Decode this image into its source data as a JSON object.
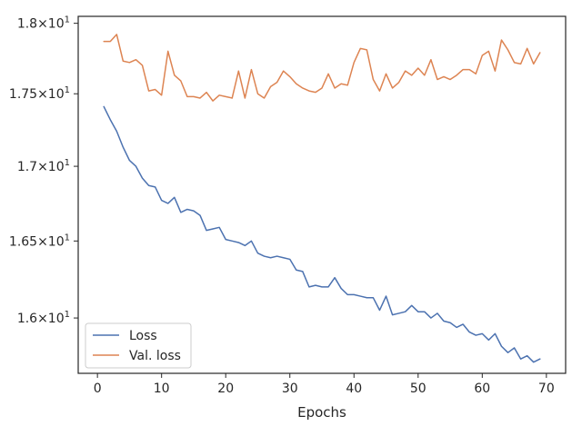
{
  "chart_data": {
    "type": "line",
    "title": "",
    "xlabel": "Epochs",
    "ylabel": "",
    "y_scale": "log",
    "xlim": [
      -3,
      73
    ],
    "ylim": [
      15.65,
      18.05
    ],
    "x_ticks": [
      0,
      10,
      20,
      30,
      40,
      50,
      60,
      70
    ],
    "x_tick_labels": [
      "0",
      "10",
      "20",
      "30",
      "40",
      "50",
      "60",
      "70"
    ],
    "y_ticks": [
      16.0,
      16.5,
      17.0,
      17.5,
      18.0
    ],
    "y_tick_labels": [
      {
        "base": "1.6",
        "exp": "1"
      },
      {
        "base": "1.65",
        "exp": "1"
      },
      {
        "base": "1.7",
        "exp": "1"
      },
      {
        "base": "1.75",
        "exp": "1"
      },
      {
        "base": "1.8",
        "exp": "1"
      }
    ],
    "grid": false,
    "legend_position": "lower-left",
    "x": [
      1,
      2,
      3,
      4,
      5,
      6,
      7,
      8,
      9,
      10,
      11,
      12,
      13,
      14,
      15,
      16,
      17,
      18,
      19,
      20,
      21,
      22,
      23,
      24,
      25,
      26,
      27,
      28,
      29,
      30,
      31,
      32,
      33,
      34,
      35,
      36,
      37,
      38,
      39,
      40,
      41,
      42,
      43,
      44,
      45,
      46,
      47,
      48,
      49,
      50,
      51,
      52,
      53,
      54,
      55,
      56,
      57,
      58,
      59,
      60,
      61,
      62,
      63,
      64,
      65,
      66,
      67,
      68,
      69
    ],
    "series": [
      {
        "name": "Loss",
        "color": "#4c72b0",
        "values": [
          17.41,
          17.32,
          17.24,
          17.13,
          17.04,
          17.0,
          16.92,
          16.87,
          16.86,
          16.77,
          16.75,
          16.79,
          16.69,
          16.71,
          16.7,
          16.67,
          16.57,
          16.58,
          16.59,
          16.51,
          16.5,
          16.49,
          16.47,
          16.5,
          16.42,
          16.4,
          16.39,
          16.4,
          16.39,
          16.38,
          16.31,
          16.3,
          16.2,
          16.21,
          16.2,
          16.2,
          16.26,
          16.19,
          16.15,
          16.15,
          16.14,
          16.13,
          16.13,
          16.05,
          16.14,
          16.02,
          16.03,
          16.04,
          16.08,
          16.04,
          16.04,
          16.0,
          16.03,
          15.98,
          15.97,
          15.94,
          15.96,
          15.91,
          15.89,
          15.9,
          15.86,
          15.9,
          15.82,
          15.78,
          15.81,
          15.74,
          15.76,
          15.72,
          15.74
        ]
      },
      {
        "name": "Val. loss",
        "color": "#dd8452",
        "values": [
          17.87,
          17.87,
          17.92,
          17.73,
          17.72,
          17.74,
          17.7,
          17.52,
          17.53,
          17.49,
          17.8,
          17.63,
          17.59,
          17.48,
          17.48,
          17.47,
          17.51,
          17.45,
          17.49,
          17.48,
          17.47,
          17.66,
          17.47,
          17.67,
          17.5,
          17.47,
          17.55,
          17.58,
          17.66,
          17.62,
          17.57,
          17.54,
          17.52,
          17.51,
          17.54,
          17.64,
          17.54,
          17.57,
          17.56,
          17.72,
          17.82,
          17.81,
          17.6,
          17.52,
          17.64,
          17.54,
          17.58,
          17.66,
          17.63,
          17.68,
          17.63,
          17.74,
          17.6,
          17.62,
          17.6,
          17.63,
          17.67,
          17.67,
          17.64,
          17.77,
          17.8,
          17.66,
          17.88,
          17.81,
          17.72,
          17.71,
          17.82,
          17.71,
          17.79
        ]
      }
    ]
  }
}
